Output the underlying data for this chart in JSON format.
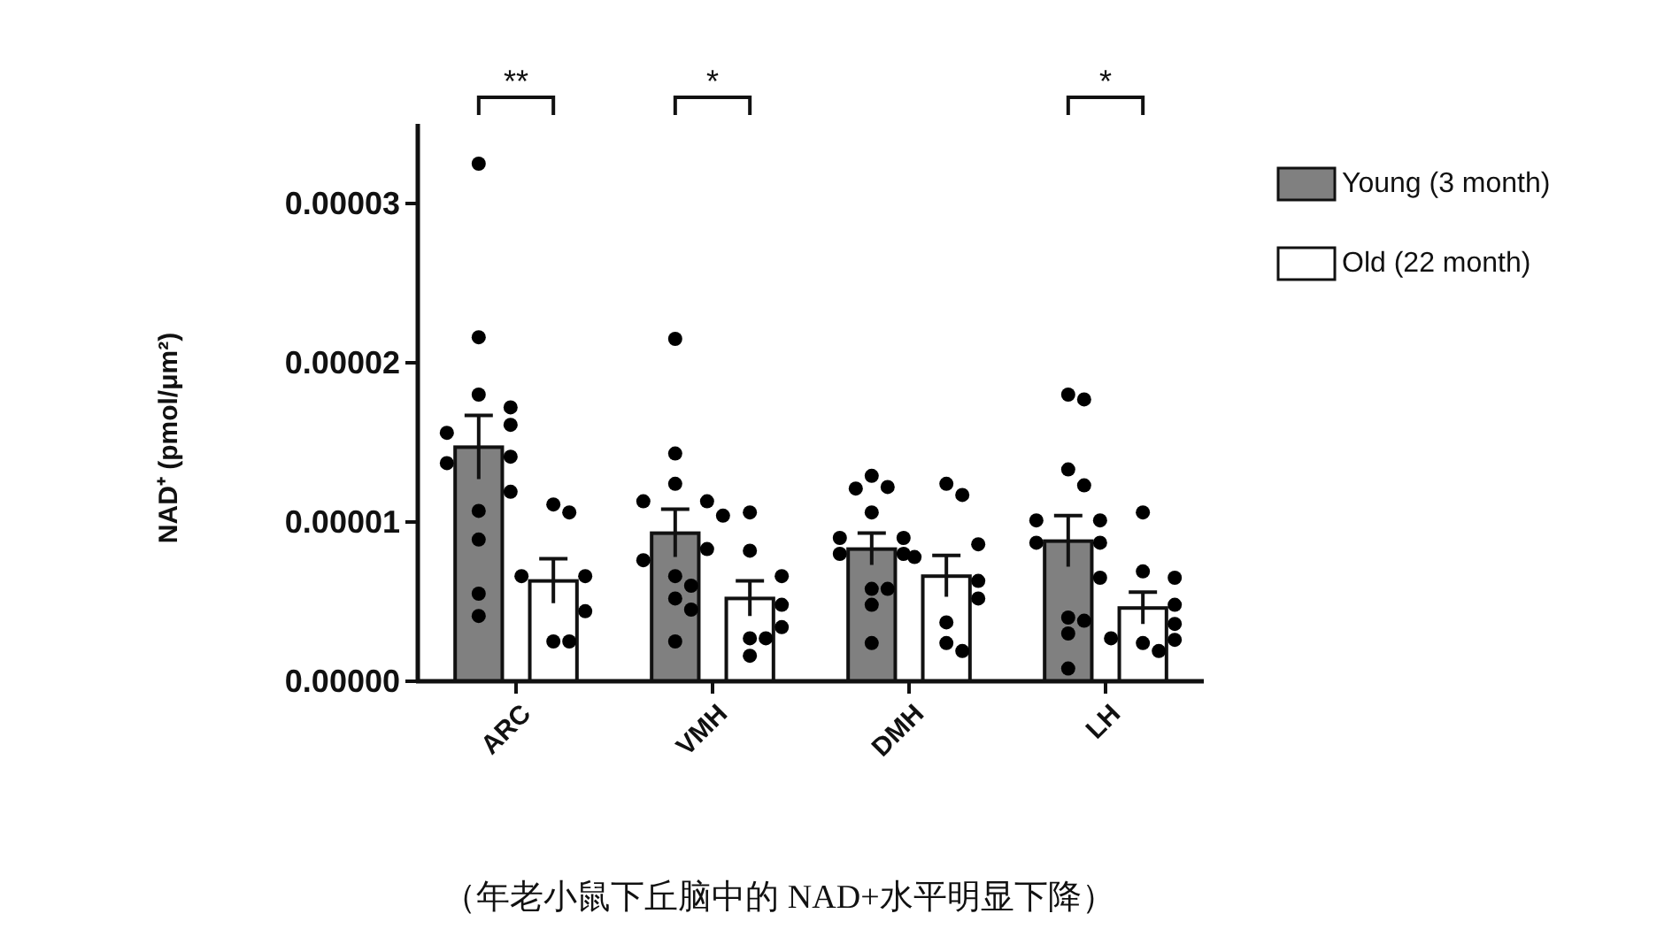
{
  "chart_data": {
    "type": "bar",
    "ylabel": "NAD⁺ (pmol/μm²)",
    "categories": [
      "ARC",
      "VMH",
      "DMH",
      "LH"
    ],
    "ylim": [
      0,
      3.5e-05
    ],
    "yticks": [
      {
        "value": 0,
        "label": "0.00000"
      },
      {
        "value": 1e-05,
        "label": "0.00001"
      },
      {
        "value": 2e-05,
        "label": "0.00002"
      },
      {
        "value": 3e-05,
        "label": "0.00003"
      }
    ],
    "legend": "right",
    "series": [
      {
        "name": "Young (3 month)",
        "type": "bar",
        "color": "#808080",
        "values": [
          1.47e-05,
          9.3e-06,
          8.3e-06,
          8.8e-06
        ],
        "errors": [
          2e-06,
          1.5e-06,
          1e-06,
          1.6e-06
        ]
      },
      {
        "name": "Old (22 month)",
        "type": "bar",
        "color": "#ffffff",
        "values": [
          6.3e-06,
          5.2e-06,
          6.6e-06,
          4.6e-06
        ],
        "errors": [
          1.4e-06,
          1.1e-06,
          1.3e-06,
          1e-06
        ]
      },
      {
        "type": "scatter",
        "color": "#000000",
        "x": [
          "ARC",
          "ARC",
          "ARC",
          "ARC",
          "ARC",
          "ARC",
          "ARC",
          "ARC",
          "ARC",
          "ARC",
          "ARC",
          "ARC",
          "ARC",
          "VMH",
          "VMH",
          "VMH",
          "VMH",
          "VMH",
          "VMH",
          "VMH",
          "VMH",
          "VMH",
          "VMH",
          "VMH",
          "VMH",
          "VMH",
          "DMH",
          "DMH",
          "DMH",
          "DMH",
          "DMH",
          "DMH",
          "DMH",
          "DMH",
          "DMH",
          "DMH",
          "DMH",
          "DMH",
          "LH",
          "LH",
          "LH",
          "LH",
          "LH",
          "LH",
          "LH",
          "LH",
          "LH",
          "LH",
          "LH",
          "LH",
          "LH"
        ],
        "values": [
          3.25e-05,
          2.16e-05,
          1.8e-05,
          1.72e-05,
          1.61e-05,
          1.56e-05,
          1.41e-05,
          1.37e-05,
          1.19e-05,
          1.07e-05,
          8.9e-06,
          5.5e-06,
          4.1e-06,
          2.15e-05,
          1.43e-05,
          1.24e-05,
          1.13e-05,
          1.13e-05,
          1.04e-05,
          8.3e-06,
          7.6e-06,
          6.6e-06,
          6e-06,
          5.2e-06,
          4.5e-06,
          2.5e-06,
          1.29e-05,
          1.22e-05,
          1.21e-05,
          1.06e-05,
          9e-06,
          9e-06,
          8e-06,
          8e-06,
          5.8e-06,
          5.8e-06,
          4.8e-06,
          2.4e-06,
          1.8e-05,
          1.77e-05,
          1.33e-05,
          1.23e-05,
          1.01e-05,
          1.01e-05,
          8.7e-06,
          8.7e-06,
          6.5e-06,
          4e-06,
          3.8e-06,
          3e-06,
          8e-07
        ]
      },
      {
        "type": "scatter",
        "color": "#000000",
        "x": [
          "ARC",
          "ARC",
          "ARC",
          "ARC",
          "ARC",
          "ARC",
          "ARC",
          "VMH",
          "VMH",
          "VMH",
          "VMH",
          "VMH",
          "VMH",
          "VMH",
          "VMH",
          "DMH",
          "DMH",
          "DMH",
          "DMH",
          "DMH",
          "DMH",
          "DMH",
          "DMH",
          "DMH",
          "LH",
          "LH",
          "LH",
          "LH",
          "LH",
          "LH",
          "LH",
          "LH",
          "LH"
        ],
        "values": [
          1.11e-05,
          1.06e-05,
          6.6e-06,
          6.6e-06,
          4.4e-06,
          2.5e-06,
          2.5e-06,
          1.06e-05,
          8.2e-06,
          6.6e-06,
          4.8e-06,
          3.4e-06,
          2.7e-06,
          2.7e-06,
          1.6e-06,
          1.24e-05,
          1.17e-05,
          8.6e-06,
          7.8e-06,
          6.3e-06,
          5.2e-06,
          3.7e-06,
          2.4e-06,
          1.9e-06,
          1.06e-05,
          6.9e-06,
          6.5e-06,
          4.8e-06,
          3.6e-06,
          2.7e-06,
          2.6e-06,
          2.4e-06,
          1.9e-06
        ]
      }
    ],
    "annotations": [
      "**",
      "*",
      "*",
      "（年老小鼠下丘脑中的 NAD+水平明显下降）"
    ]
  }
}
